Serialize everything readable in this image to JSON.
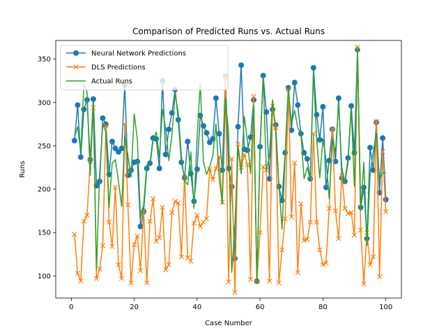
{
  "chart_data": {
    "type": "line",
    "title": "Comparison of Predicted Runs vs. Actual Runs",
    "xlabel": "Case Number",
    "ylabel": "Runs",
    "xlim": [
      -4.95,
      104.95
    ],
    "ylim": [
      74.5,
      371.5
    ],
    "xticks": [
      0,
      20,
      40,
      60,
      80,
      100
    ],
    "yticks": [
      100,
      150,
      200,
      250,
      300,
      350
    ],
    "grid": false,
    "legend_position": "upper-left",
    "x": [
      1,
      2,
      3,
      4,
      5,
      6,
      7,
      8,
      9,
      10,
      11,
      12,
      13,
      14,
      15,
      16,
      17,
      18,
      19,
      20,
      21,
      22,
      23,
      24,
      25,
      26,
      27,
      28,
      29,
      30,
      31,
      32,
      33,
      34,
      35,
      36,
      37,
      38,
      39,
      40,
      41,
      42,
      43,
      44,
      45,
      46,
      47,
      48,
      49,
      50,
      51,
      52,
      53,
      54,
      55,
      56,
      57,
      58,
      59,
      60,
      61,
      62,
      63,
      64,
      65,
      66,
      67,
      68,
      69,
      70,
      71,
      72,
      73,
      74,
      75,
      76,
      77,
      78,
      79,
      80,
      81,
      82,
      83,
      84,
      85,
      86,
      87,
      88,
      89,
      90,
      91,
      92,
      93,
      94,
      95,
      96,
      97,
      98,
      99,
      100
    ],
    "series": [
      {
        "name": "Neural Network Predictions",
        "color": "#1f77b4",
        "marker": "circle",
        "values": [
          256,
          297,
          237,
          292,
          303,
          234,
          304,
          204,
          209,
          282,
          275,
          217,
          255,
          247,
          243,
          247,
          320,
          216,
          222,
          231,
          232,
          157,
          174,
          224,
          230,
          259,
          258,
          224,
          325,
          240,
          269,
          288,
          315,
          280,
          231,
          213,
          255,
          218,
          186,
          223,
          285,
          273,
          265,
          254,
          258,
          305,
          264,
          222,
          330,
          224,
          203,
          120,
          272,
          343,
          246,
          245,
          260,
          303,
          94,
          249,
          331,
          289,
          212,
          292,
          274,
          203,
          187,
          242,
          317,
          268,
          323,
          297,
          264,
          242,
          235,
          212,
          340,
          286,
          257,
          295,
          202,
          233,
          269,
          232,
          305,
          213,
          209,
          236,
          296,
          242,
          361,
          179,
          202,
          143,
          248,
          222,
          277,
          196,
          259,
          188
        ]
      },
      {
        "name": "DLS Predictions",
        "color": "#ff7f0e",
        "marker": "x",
        "values": [
          148,
          103,
          94,
          163,
          170,
          232,
          294,
          97,
          108,
          135,
          273,
          162,
          134,
          202,
          113,
          97,
          275,
          182,
          92,
          136,
          146,
          106,
          175,
          92,
          163,
          189,
          140,
          144,
          179,
          107,
          113,
          173,
          186,
          184,
          122,
          214,
          121,
          117,
          161,
          170,
          157,
          162,
          166,
          223,
          211,
          224,
          237,
          185,
          328,
          93,
          235,
          81,
          252,
          225,
          240,
          228,
          96,
          307,
          93,
          150,
          226,
          222,
          94,
          296,
          271,
          92,
          130,
          166,
          315,
          168,
          230,
          104,
          183,
          141,
          142,
          162,
          264,
          162,
          130,
          113,
          115,
          178,
          269,
          175,
          143,
          216,
          178,
          172,
          173,
          147,
          364,
          153,
          91,
          150,
          113,
          122,
          278,
          99,
          243,
          174
        ]
      },
      {
        "name": "Actual Runs",
        "color": "#2ca02c",
        "marker": "none",
        "values": [
          260,
          272,
          243,
          321,
          312,
          216,
          298,
          107,
          217,
          275,
          266,
          179,
          230,
          234,
          209,
          180,
          262,
          239,
          214,
          287,
          257,
          166,
          182,
          228,
          227,
          256,
          266,
          237,
          292,
          270,
          233,
          263,
          310,
          288,
          238,
          210,
          205,
          243,
          178,
          261,
          322,
          232,
          217,
          226,
          239,
          275,
          214,
          183,
          305,
          265,
          104,
          157,
          249,
          218,
          284,
          256,
          218,
          296,
          91,
          246,
          330,
          222,
          238,
          303,
          265,
          206,
          154,
          237,
          317,
          276,
          291,
          271,
          264,
          212,
          225,
          211,
          336,
          258,
          213,
          258,
          234,
          189,
          257,
          243,
          299,
          225,
          207,
          231,
          294,
          203,
          360,
          175,
          231,
          135,
          218,
          243,
          265,
          211,
          219,
          219
        ]
      }
    ]
  }
}
